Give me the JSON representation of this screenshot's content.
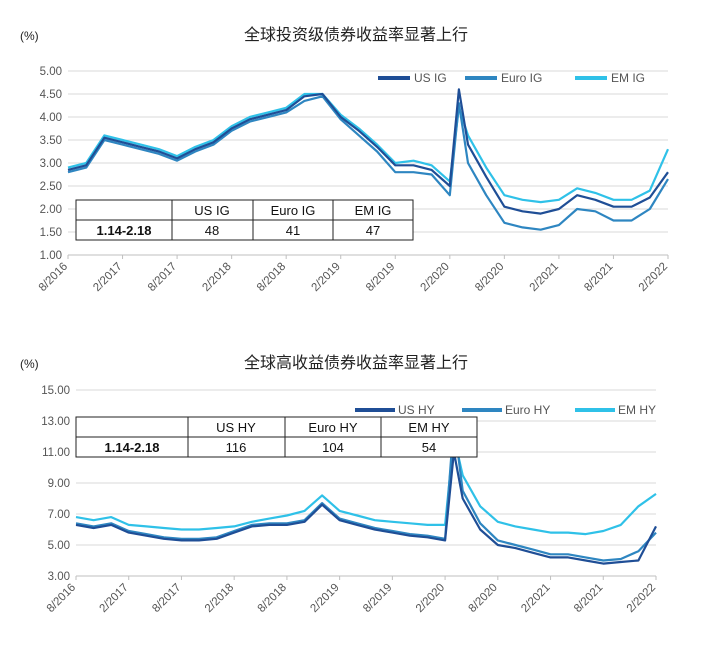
{
  "chart_data": [
    {
      "type": "line",
      "title": "全球投资级债券收益率显著上行",
      "ylabel": "(%)",
      "ylim": [
        1.0,
        5.0
      ],
      "yticks": [
        "1.00",
        "1.50",
        "2.00",
        "2.50",
        "3.00",
        "3.50",
        "4.00",
        "4.50",
        "5.00"
      ],
      "xticks": [
        "8/2016",
        "2/2017",
        "8/2017",
        "2/2018",
        "8/2018",
        "2/2019",
        "8/2019",
        "2/2020",
        "8/2020",
        "2/2021",
        "8/2021",
        "2/2022"
      ],
      "x": [
        "8/2016",
        "10/2016",
        "12/2016",
        "2/2017",
        "4/2017",
        "6/2017",
        "8/2017",
        "10/2017",
        "12/2017",
        "2/2018",
        "4/2018",
        "6/2018",
        "8/2018",
        "10/2018",
        "12/2018",
        "2/2019",
        "4/2019",
        "6/2019",
        "8/2019",
        "10/2019",
        "12/2019",
        "2/2020",
        "3/2020",
        "4/2020",
        "6/2020",
        "8/2020",
        "10/2020",
        "12/2020",
        "2/2021",
        "4/2021",
        "6/2021",
        "8/2021",
        "10/2021",
        "12/2021",
        "2/2022"
      ],
      "legend_position": "top-right",
      "series": [
        {
          "name": "US IG",
          "color": "#1f4e96",
          "values": [
            2.85,
            2.95,
            3.55,
            3.45,
            3.35,
            3.25,
            3.1,
            3.3,
            3.45,
            3.75,
            3.95,
            4.05,
            4.15,
            4.45,
            4.5,
            4.0,
            3.7,
            3.35,
            2.95,
            2.95,
            2.85,
            2.5,
            4.6,
            3.4,
            2.7,
            2.05,
            1.95,
            1.9,
            2.0,
            2.3,
            2.2,
            2.05,
            2.05,
            2.25,
            2.8
          ]
        },
        {
          "name": "Euro IG",
          "color": "#2e86c1",
          "values": [
            2.8,
            2.9,
            3.5,
            3.4,
            3.3,
            3.2,
            3.05,
            3.25,
            3.4,
            3.7,
            3.9,
            4.0,
            4.1,
            4.35,
            4.45,
            3.95,
            3.6,
            3.25,
            2.8,
            2.8,
            2.75,
            2.3,
            4.3,
            3.0,
            2.3,
            1.7,
            1.6,
            1.55,
            1.65,
            2.0,
            1.95,
            1.75,
            1.75,
            2.0,
            2.65
          ]
        },
        {
          "name": "EM IG",
          "color": "#2fc1e8",
          "values": [
            2.9,
            3.0,
            3.6,
            3.5,
            3.4,
            3.3,
            3.15,
            3.35,
            3.5,
            3.8,
            4.0,
            4.1,
            4.2,
            4.5,
            4.5,
            4.05,
            3.75,
            3.4,
            3.0,
            3.05,
            2.95,
            2.6,
            4.2,
            3.6,
            2.9,
            2.3,
            2.2,
            2.15,
            2.2,
            2.45,
            2.35,
            2.2,
            2.2,
            2.4,
            3.3
          ]
        }
      ],
      "table": {
        "headers": [
          "",
          "US IG",
          "Euro IG",
          "EM IG"
        ],
        "row_label": "1.14-2.18",
        "values": [
          "48",
          "41",
          "47"
        ]
      }
    },
    {
      "type": "line",
      "title": "全球高收益债券收益率显著上行",
      "ylabel": "(%)",
      "ylim": [
        3.0,
        15.0
      ],
      "yticks": [
        "3.00",
        "5.00",
        "7.00",
        "9.00",
        "11.00",
        "13.00",
        "15.00"
      ],
      "xticks": [
        "8/2016",
        "2/2017",
        "8/2017",
        "2/2018",
        "8/2018",
        "2/2019",
        "8/2019",
        "2/2020",
        "8/2020",
        "2/2021",
        "8/2021",
        "2/2022"
      ],
      "x": [
        "8/2016",
        "10/2016",
        "12/2016",
        "2/2017",
        "4/2017",
        "6/2017",
        "8/2017",
        "10/2017",
        "12/2017",
        "2/2018",
        "4/2018",
        "6/2018",
        "8/2018",
        "10/2018",
        "12/2018",
        "2/2019",
        "4/2019",
        "6/2019",
        "8/2019",
        "10/2019",
        "12/2019",
        "2/2020",
        "3/2020",
        "4/2020",
        "6/2020",
        "8/2020",
        "10/2020",
        "12/2020",
        "2/2021",
        "4/2021",
        "6/2021",
        "8/2021",
        "10/2021",
        "12/2021",
        "2/2022"
      ],
      "legend_position": "top-right",
      "series": [
        {
          "name": "US HY",
          "color": "#1f4e96",
          "values": [
            6.3,
            6.1,
            6.3,
            5.8,
            5.6,
            5.4,
            5.3,
            5.3,
            5.4,
            5.8,
            6.2,
            6.3,
            6.3,
            6.5,
            7.6,
            6.6,
            6.3,
            6.0,
            5.8,
            5.6,
            5.5,
            5.3,
            11.0,
            8.0,
            6.0,
            5.0,
            4.8,
            4.5,
            4.2,
            4.2,
            4.0,
            3.8,
            3.9,
            4.0,
            6.2
          ]
        },
        {
          "name": "Euro HY",
          "color": "#2e86c1",
          "values": [
            6.4,
            6.2,
            6.4,
            5.9,
            5.7,
            5.5,
            5.4,
            5.4,
            5.5,
            5.9,
            6.3,
            6.4,
            6.4,
            6.6,
            7.7,
            6.7,
            6.4,
            6.1,
            5.9,
            5.7,
            5.6,
            5.4,
            13.0,
            8.5,
            6.4,
            5.3,
            5.0,
            4.7,
            4.4,
            4.4,
            4.2,
            4.0,
            4.1,
            4.6,
            5.8
          ]
        },
        {
          "name": "EM HY",
          "color": "#2fc1e8",
          "values": [
            6.8,
            6.6,
            6.8,
            6.3,
            6.2,
            6.1,
            6.0,
            6.0,
            6.1,
            6.2,
            6.5,
            6.7,
            6.9,
            7.2,
            8.2,
            7.2,
            6.9,
            6.6,
            6.5,
            6.4,
            6.3,
            6.3,
            12.0,
            9.5,
            7.5,
            6.5,
            6.2,
            6.0,
            5.8,
            5.8,
            5.7,
            5.9,
            6.3,
            7.5,
            8.3
          ]
        }
      ],
      "table": {
        "headers": [
          "",
          "US HY",
          "Euro HY",
          "EM HY"
        ],
        "row_label": "1.14-2.18",
        "values": [
          "116",
          "104",
          "54"
        ]
      }
    }
  ]
}
